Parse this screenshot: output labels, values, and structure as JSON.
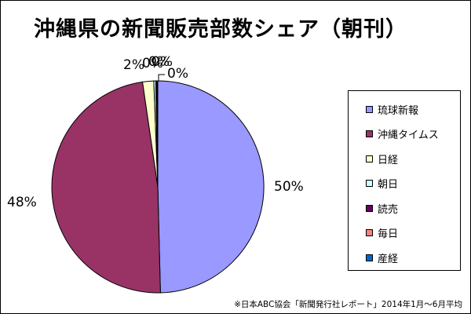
{
  "chart_data": {
    "type": "pie",
    "title": "沖縄県の新聞販売部数シェア（朝刊）",
    "slices": [
      {
        "label": "琉球新報",
        "value": 49.6,
        "display": "50%",
        "color": "#9999ff"
      },
      {
        "label": "沖縄タイムス",
        "value": 48.1,
        "display": "48%",
        "color": "#993366"
      },
      {
        "label": "日経",
        "value": 1.7,
        "display": "2%",
        "color": "#ffffcc"
      },
      {
        "label": "朝日",
        "value": 0.3,
        "display": "0%",
        "color": "#ccffff"
      },
      {
        "label": "読売",
        "value": 0.15,
        "display": "0%",
        "color": "#660066"
      },
      {
        "label": "毎日",
        "value": 0.1,
        "display": "0%",
        "color": "#ff8080"
      },
      {
        "label": "産経",
        "value": 0.05,
        "display": "0%",
        "color": "#0066cc"
      }
    ],
    "legend_position": "right"
  },
  "source_note": "※日本ABC協会「新聞発行社レポート」2014年1月～6月平均"
}
